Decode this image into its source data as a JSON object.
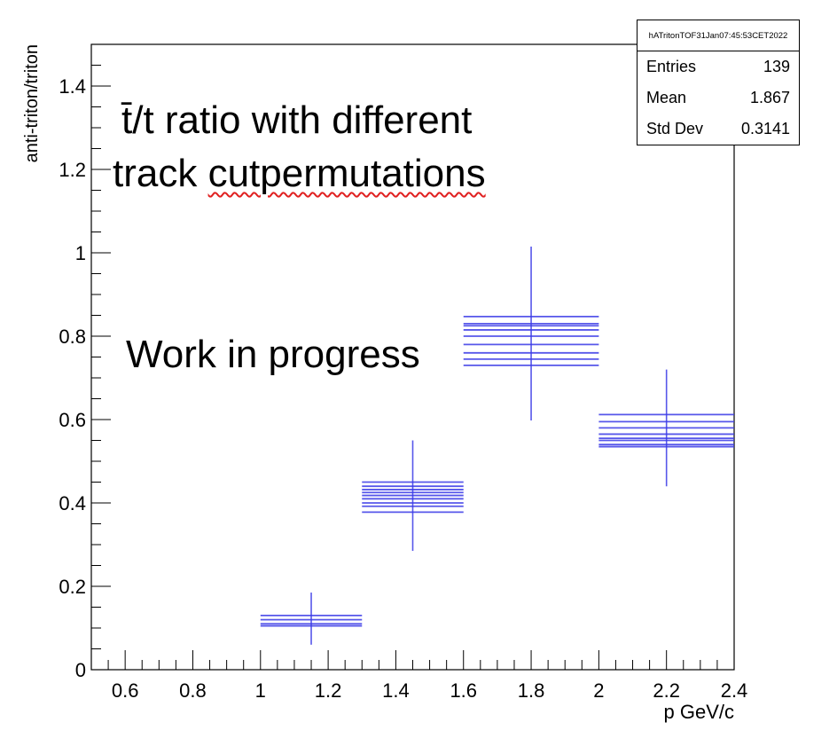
{
  "chart_data": {
    "type": "scatter",
    "title": "",
    "xlabel": "p GeV/c",
    "ylabel": "anti-triton/triton",
    "xlim": [
      0.5,
      2.4
    ],
    "ylim": [
      0,
      1.5
    ],
    "x_ticks": [
      "0.6",
      "0.8",
      "1",
      "1.2",
      "1.4",
      "1.6",
      "1.8",
      "2",
      "2.2",
      "2.4"
    ],
    "y_ticks": [
      "0",
      "0.2",
      "0.4",
      "0.6",
      "0.8",
      "1",
      "1.2",
      "1.4"
    ],
    "grid": false,
    "legend": "none",
    "color": "#3a3ae6",
    "bins": [
      {
        "x_low": 1.0,
        "x_high": 1.3,
        "x_center": 1.15,
        "values": [
          0.105,
          0.11,
          0.12,
          0.13
        ],
        "err_low": 0.06,
        "err_high": 0.185
      },
      {
        "x_low": 1.3,
        "x_high": 1.6,
        "x_center": 1.45,
        "values": [
          0.378,
          0.392,
          0.4,
          0.41,
          0.418,
          0.425,
          0.432,
          0.44,
          0.45
        ],
        "err_low": 0.285,
        "err_high": 0.55
      },
      {
        "x_low": 1.6,
        "x_high": 2.0,
        "x_center": 1.8,
        "values": [
          0.73,
          0.745,
          0.76,
          0.78,
          0.8,
          0.815,
          0.825,
          0.83,
          0.847
        ],
        "err_low": 0.598,
        "err_high": 1.015
      },
      {
        "x_low": 2.0,
        "x_high": 2.4,
        "x_center": 2.2,
        "values": [
          0.535,
          0.54,
          0.55,
          0.555,
          0.565,
          0.58,
          0.595,
          0.612
        ],
        "err_low": 0.44,
        "err_high": 0.72
      }
    ]
  },
  "stats": {
    "title": "hATritonTOF31Jan07:45:53CET2022",
    "rows": [
      {
        "label": "Entries",
        "value": "139"
      },
      {
        "label": "Mean",
        "value": "1.867"
      },
      {
        "label": "Std Dev",
        "value": "0.3141"
      }
    ]
  },
  "annotations": {
    "line1": "t̄/t ratio with different",
    "line2_a": "track ",
    "line2_b": "cutpermutations",
    "wip": "Work in progress"
  }
}
